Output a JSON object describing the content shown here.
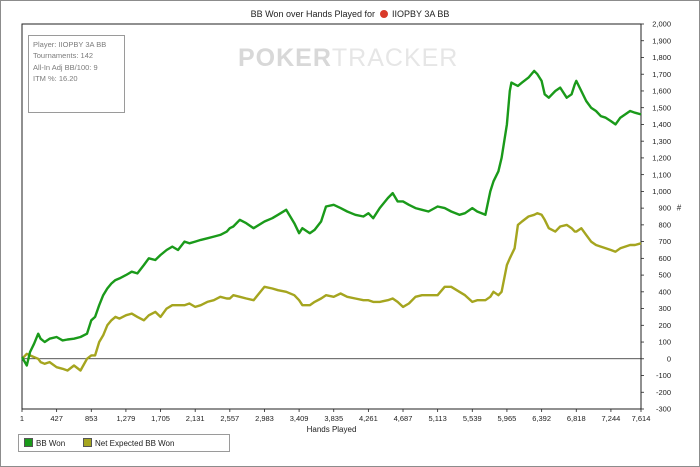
{
  "title_prefix": "BB Won over Hands Played for",
  "title_player": "IIOPBY 3A BB",
  "watermark": {
    "part1": "POKER",
    "part2": "TRACKER"
  },
  "info": {
    "player": "Player: IIOPBY 3A BB",
    "tournaments": "Tournaments: 142",
    "allin": "All-In Adj BB/100: 9",
    "itm": "ITM %: 16.20"
  },
  "colors": {
    "bb_won": "#1a9a1a",
    "net_expected": "#a5a51f",
    "zero_line": "#222222",
    "frame": "#8c8c8c"
  },
  "chart_data": {
    "type": "line",
    "title": "BB Won over Hands Played for IIOPBY 3A BB",
    "xlabel": "Hands Played",
    "ylabel": "#",
    "xlim": [
      1,
      7614
    ],
    "ylim": [
      -300,
      2000
    ],
    "x_ticks": [
      "1",
      "427",
      "853",
      "1,279",
      "1,705",
      "2,131",
      "2,557",
      "2,983",
      "3,409",
      "3,835",
      "4,261",
      "4,687",
      "5,113",
      "5,539",
      "5,965",
      "6,392",
      "6,818",
      "7,244",
      "7,614"
    ],
    "y_ticks": [
      "-300",
      "-200",
      "-100",
      "0",
      "100",
      "200",
      "300",
      "400",
      "500",
      "600",
      "700",
      "800",
      "900",
      "1,000",
      "1,100",
      "1,200",
      "1,300",
      "1,400",
      "1,500",
      "1,600",
      "1,700",
      "1,800",
      "1,900",
      "2,000"
    ],
    "legend_position": "bottom-left",
    "series": [
      {
        "name": "BB Won",
        "x": [
          1,
          60,
          100,
          150,
          200,
          230,
          280,
          340,
          427,
          500,
          560,
          640,
          720,
          800,
          853,
          900,
          950,
          1000,
          1050,
          1100,
          1150,
          1200,
          1279,
          1350,
          1420,
          1500,
          1560,
          1640,
          1705,
          1780,
          1850,
          1920,
          2000,
          2060,
          2131,
          2200,
          2280,
          2360,
          2440,
          2520,
          2557,
          2600,
          2680,
          2760,
          2850,
          2983,
          3080,
          3150,
          3250,
          3350,
          3409,
          3450,
          3540,
          3600,
          3680,
          3740,
          3835,
          3920,
          4000,
          4100,
          4200,
          4261,
          4320,
          4400,
          4500,
          4560,
          4620,
          4687,
          4760,
          4840,
          4920,
          5000,
          5113,
          5200,
          5280,
          5380,
          5450,
          5539,
          5600,
          5700,
          5760,
          5800,
          5860,
          5900,
          5965,
          6000,
          6020,
          6060,
          6100,
          6150,
          6230,
          6300,
          6340,
          6392,
          6430,
          6480,
          6560,
          6620,
          6700,
          6760,
          6800,
          6818,
          6880,
          6940,
          7000,
          7060,
          7120,
          7180,
          7244,
          7300,
          7360,
          7420,
          7480,
          7540,
          7614
        ],
        "y": [
          10,
          -40,
          40,
          90,
          150,
          120,
          100,
          120,
          130,
          110,
          115,
          120,
          130,
          150,
          230,
          250,
          320,
          380,
          420,
          450,
          470,
          480,
          500,
          520,
          510,
          560,
          600,
          590,
          620,
          650,
          670,
          650,
          700,
          690,
          700,
          710,
          720,
          730,
          740,
          760,
          780,
          790,
          830,
          810,
          780,
          820,
          840,
          860,
          890,
          810,
          750,
          780,
          750,
          770,
          820,
          910,
          920,
          900,
          880,
          860,
          850,
          870,
          840,
          900,
          960,
          990,
          940,
          940,
          920,
          900,
          890,
          880,
          910,
          900,
          880,
          860,
          870,
          900,
          880,
          860,
          1000,
          1060,
          1120,
          1200,
          1400,
          1600,
          1650,
          1640,
          1630,
          1650,
          1680,
          1720,
          1700,
          1660,
          1580,
          1560,
          1600,
          1620,
          1560,
          1580,
          1640,
          1660,
          1600,
          1540,
          1500,
          1480,
          1450,
          1440,
          1420,
          1400,
          1440,
          1460,
          1480,
          1470,
          1460
        ],
        "color": "#1a9a1a"
      },
      {
        "name": "Net Expected BB Won",
        "x": [
          1,
          60,
          100,
          150,
          200,
          230,
          280,
          340,
          427,
          500,
          560,
          640,
          720,
          800,
          853,
          900,
          950,
          1000,
          1050,
          1100,
          1150,
          1200,
          1279,
          1350,
          1420,
          1500,
          1560,
          1640,
          1705,
          1780,
          1850,
          1920,
          2000,
          2060,
          2131,
          2200,
          2280,
          2360,
          2440,
          2520,
          2557,
          2600,
          2680,
          2760,
          2850,
          2983,
          3080,
          3150,
          3250,
          3350,
          3409,
          3450,
          3540,
          3600,
          3680,
          3740,
          3835,
          3920,
          4000,
          4100,
          4200,
          4261,
          4320,
          4400,
          4500,
          4560,
          4620,
          4687,
          4760,
          4840,
          4920,
          5000,
          5113,
          5200,
          5280,
          5380,
          5450,
          5539,
          5600,
          5700,
          5760,
          5800,
          5860,
          5900,
          5965,
          6000,
          6020,
          6060,
          6100,
          6150,
          6230,
          6300,
          6340,
          6392,
          6430,
          6480,
          6560,
          6620,
          6700,
          6760,
          6800,
          6818,
          6880,
          6940,
          7000,
          7060,
          7120,
          7180,
          7244,
          7300,
          7360,
          7420,
          7480,
          7540,
          7614
        ],
        "y": [
          0,
          30,
          20,
          10,
          0,
          -20,
          -30,
          -20,
          -50,
          -60,
          -70,
          -40,
          -70,
          0,
          20,
          20,
          100,
          140,
          200,
          230,
          250,
          240,
          260,
          270,
          250,
          230,
          260,
          280,
          250,
          300,
          320,
          320,
          320,
          330,
          310,
          320,
          340,
          350,
          370,
          360,
          360,
          380,
          370,
          360,
          350,
          430,
          420,
          410,
          400,
          380,
          350,
          320,
          320,
          340,
          360,
          380,
          370,
          390,
          370,
          360,
          350,
          350,
          340,
          340,
          350,
          360,
          340,
          310,
          330,
          370,
          380,
          380,
          380,
          430,
          430,
          400,
          380,
          340,
          350,
          350,
          370,
          400,
          380,
          400,
          560,
          600,
          620,
          660,
          800,
          820,
          850,
          860,
          870,
          860,
          830,
          780,
          760,
          790,
          800,
          780,
          760,
          760,
          780,
          740,
          700,
          680,
          670,
          660,
          650,
          640,
          660,
          670,
          680,
          680,
          690
        ],
        "color": "#a5a51f"
      }
    ]
  }
}
